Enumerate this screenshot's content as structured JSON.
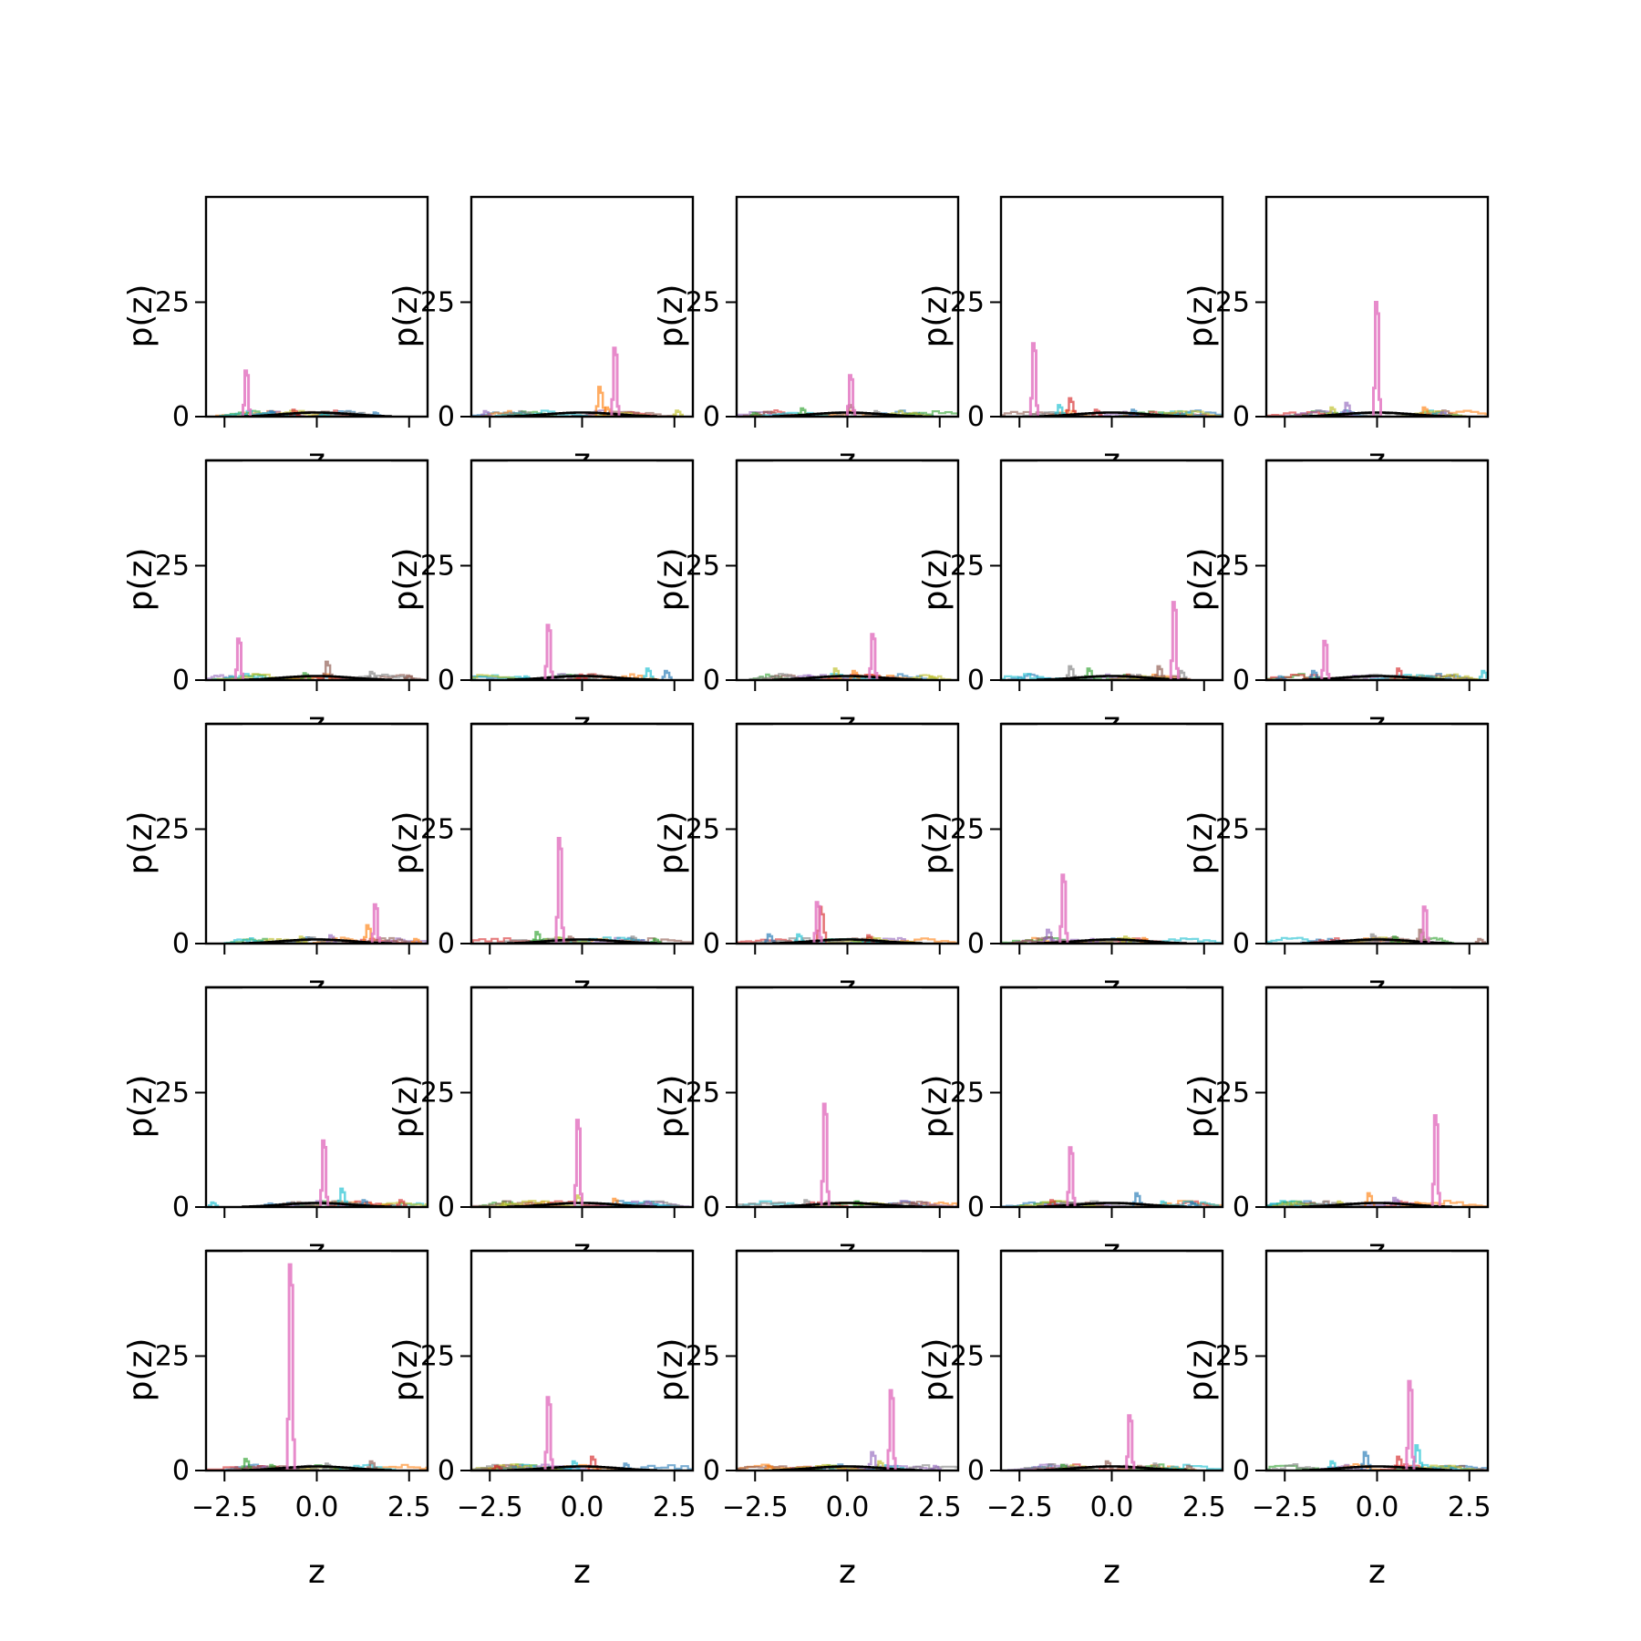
{
  "chart_data": {
    "type": "histogram-grid",
    "title": "",
    "rows": 5,
    "cols": 5,
    "xlabel": "z",
    "ylabel": "p(z)",
    "xlim": [
      -3.0,
      3.0
    ],
    "ylim": [
      0,
      48
    ],
    "xticks": [
      -2.5,
      0.0,
      2.5
    ],
    "xtick_labels": [
      "−2.5",
      "0.0",
      "2.5"
    ],
    "yticks": [
      0,
      25
    ],
    "ytick_labels": [
      "0",
      "25"
    ],
    "grid": false,
    "legend": "none",
    "background_palette": [
      "#1f77b4",
      "#ff7f0e",
      "#2ca02c",
      "#d62728",
      "#9467bd",
      "#8c564b",
      "#17becf",
      "#bcbd22",
      "#7f7f7f"
    ],
    "peak_color": "#e377c2",
    "mean_color": "#000000",
    "panels": [
      {
        "peak": {
          "x": -1.9,
          "height": 10
        },
        "bumps": [
          {
            "x": -1.2,
            "h": 1.2
          },
          {
            "x": -0.6,
            "h": 1.5
          },
          {
            "x": 0.2,
            "h": 0.8
          },
          {
            "x": 1.6,
            "h": 0.9
          }
        ]
      },
      {
        "peak": {
          "x": 0.9,
          "height": 15
        },
        "bumps": [
          {
            "x": 0.5,
            "h": 6.5
          },
          {
            "x": -2.6,
            "h": 1.2
          },
          {
            "x": 2.6,
            "h": 1.3
          },
          {
            "x": 0.7,
            "h": 2
          }
        ]
      },
      {
        "peak": {
          "x": 0.1,
          "height": 9
        },
        "bumps": [
          {
            "x": -1.2,
            "h": 1.8
          },
          {
            "x": 0.1,
            "h": 2.5
          },
          {
            "x": 0.8,
            "h": 1.2
          },
          {
            "x": -2.5,
            "h": 0.8
          }
        ]
      },
      {
        "peak": {
          "x": -2.1,
          "height": 16
        },
        "bumps": [
          {
            "x": -1.1,
            "h": 4
          },
          {
            "x": -1.4,
            "h": 2.5
          },
          {
            "x": 0.6,
            "h": 1.5
          },
          {
            "x": -0.4,
            "h": 1.5
          }
        ]
      },
      {
        "peak": {
          "x": 0.0,
          "height": 25
        },
        "bumps": [
          {
            "x": -0.8,
            "h": 3
          },
          {
            "x": -1.2,
            "h": 2
          },
          {
            "x": 1.3,
            "h": 2
          },
          {
            "x": 1.8,
            "h": 1
          }
        ]
      },
      {
        "peak": {
          "x": -2.1,
          "height": 9
        },
        "bumps": [
          {
            "x": 0.3,
            "h": 4
          },
          {
            "x": 1.5,
            "h": 1.8
          },
          {
            "x": -0.3,
            "h": 1.5
          },
          {
            "x": 2.5,
            "h": 1
          }
        ]
      },
      {
        "peak": {
          "x": -0.9,
          "height": 12
        },
        "bumps": [
          {
            "x": 1.8,
            "h": 2.5
          },
          {
            "x": 2.3,
            "h": 2
          },
          {
            "x": 0,
            "h": 1.2
          },
          {
            "x": -1.5,
            "h": 0.8
          }
        ]
      },
      {
        "peak": {
          "x": 0.7,
          "height": 10
        },
        "bumps": [
          {
            "x": -0.3,
            "h": 2.5
          },
          {
            "x": 0.2,
            "h": 2
          },
          {
            "x": -1,
            "h": 1
          },
          {
            "x": 2.3,
            "h": 0.8
          }
        ]
      },
      {
        "peak": {
          "x": 1.7,
          "height": 17
        },
        "bumps": [
          {
            "x": -1.1,
            "h": 3
          },
          {
            "x": -0.6,
            "h": 2.5
          },
          {
            "x": 1.3,
            "h": 3
          },
          {
            "x": 1.9,
            "h": 2
          }
        ]
      },
      {
        "peak": {
          "x": -1.4,
          "height": 8.5
        },
        "bumps": [
          {
            "x": -1.7,
            "h": 2
          },
          {
            "x": 0.6,
            "h": 2.5
          },
          {
            "x": 2.9,
            "h": 2
          },
          {
            "x": -2.6,
            "h": 0.8
          }
        ]
      },
      {
        "peak": {
          "x": 1.6,
          "height": 8.5
        },
        "bumps": [
          {
            "x": 1.4,
            "h": 4
          },
          {
            "x": 0.4,
            "h": 1.8
          },
          {
            "x": -0.4,
            "h": 1.5
          },
          {
            "x": 2.7,
            "h": 1
          }
        ]
      },
      {
        "peak": {
          "x": -0.6,
          "height": 23
        },
        "bumps": [
          {
            "x": -1.2,
            "h": 2.5
          },
          {
            "x": -0.3,
            "h": 1.5
          },
          {
            "x": 1.4,
            "h": 1.5
          },
          {
            "x": 2,
            "h": 1
          }
        ]
      },
      {
        "peak": {
          "x": -0.8,
          "height": 9
        },
        "bumps": [
          {
            "x": -0.7,
            "h": 8
          },
          {
            "x": -1.3,
            "h": 2
          },
          {
            "x": -2.1,
            "h": 2
          },
          {
            "x": 0.6,
            "h": 1.8
          }
        ]
      },
      {
        "peak": {
          "x": -1.3,
          "height": 15
        },
        "bumps": [
          {
            "x": -1.7,
            "h": 3
          },
          {
            "x": 0.4,
            "h": 1.5
          },
          {
            "x": 0.9,
            "h": 1.2
          },
          {
            "x": -0.5,
            "h": 1
          }
        ]
      },
      {
        "peak": {
          "x": 1.3,
          "height": 8
        },
        "bumps": [
          {
            "x": 1.2,
            "h": 3
          },
          {
            "x": -0.1,
            "h": 2
          },
          {
            "x": 0.5,
            "h": 1.5
          },
          {
            "x": 2.8,
            "h": 1
          }
        ]
      },
      {
        "peak": {
          "x": 0.2,
          "height": 14.5
        },
        "bumps": [
          {
            "x": 0.7,
            "h": 4
          },
          {
            "x": 1.3,
            "h": 1.5
          },
          {
            "x": 2.3,
            "h": 1.5
          },
          {
            "x": -2.8,
            "h": 1
          }
        ]
      },
      {
        "peak": {
          "x": -0.1,
          "height": 19
        },
        "bumps": [
          {
            "x": -0.1,
            "h": 2.5
          },
          {
            "x": 0.9,
            "h": 1.8
          },
          {
            "x": 1.8,
            "h": 1.2
          },
          {
            "x": -2.1,
            "h": 0.8
          }
        ]
      },
      {
        "peak": {
          "x": -0.6,
          "height": 22.5
        },
        "bumps": [
          {
            "x": -1.1,
            "h": 1.5
          },
          {
            "x": 0.3,
            "h": 1.2
          },
          {
            "x": 1.8,
            "h": 1
          },
          {
            "x": -0.5,
            "h": 1.2
          }
        ]
      },
      {
        "peak": {
          "x": -1.1,
          "height": 13
        },
        "bumps": [
          {
            "x": 0.7,
            "h": 3
          },
          {
            "x": -1.6,
            "h": 1.5
          },
          {
            "x": 1.4,
            "h": 1.2
          },
          {
            "x": 2.2,
            "h": 1
          }
        ]
      },
      {
        "peak": {
          "x": 1.6,
          "height": 20
        },
        "bumps": [
          {
            "x": -0.2,
            "h": 3
          },
          {
            "x": 0.5,
            "h": 2
          },
          {
            "x": -1,
            "h": 1.2
          },
          {
            "x": 1.1,
            "h": 1
          }
        ]
      },
      {
        "peak": {
          "x": -0.7,
          "height": 45
        },
        "bumps": [
          {
            "x": -1.9,
            "h": 2.5
          },
          {
            "x": 1.5,
            "h": 2
          },
          {
            "x": 0.3,
            "h": 1.5
          },
          {
            "x": -1.2,
            "h": 1.2
          }
        ]
      },
      {
        "peak": {
          "x": -0.9,
          "height": 16
        },
        "bumps": [
          {
            "x": 0.3,
            "h": 3
          },
          {
            "x": -0.2,
            "h": 2
          },
          {
            "x": 1.2,
            "h": 1.5
          },
          {
            "x": -2.3,
            "h": 1
          }
        ]
      },
      {
        "peak": {
          "x": 1.2,
          "height": 17.5
        },
        "bumps": [
          {
            "x": 0.7,
            "h": 4
          },
          {
            "x": 0.9,
            "h": 2
          },
          {
            "x": -2.1,
            "h": 1
          },
          {
            "x": 2.4,
            "h": 1
          }
        ]
      },
      {
        "peak": {
          "x": 0.5,
          "height": 12
        },
        "bumps": [
          {
            "x": -0.1,
            "h": 2
          },
          {
            "x": 1.2,
            "h": 1.5
          },
          {
            "x": -1.3,
            "h": 1.2
          },
          {
            "x": 2.1,
            "h": 1
          }
        ]
      },
      {
        "peak": {
          "x": 0.9,
          "height": 19.5
        },
        "bumps": [
          {
            "x": 1.1,
            "h": 5.5
          },
          {
            "x": -0.3,
            "h": 4
          },
          {
            "x": 0.6,
            "h": 3
          },
          {
            "x": -1.2,
            "h": 2
          }
        ]
      }
    ]
  }
}
